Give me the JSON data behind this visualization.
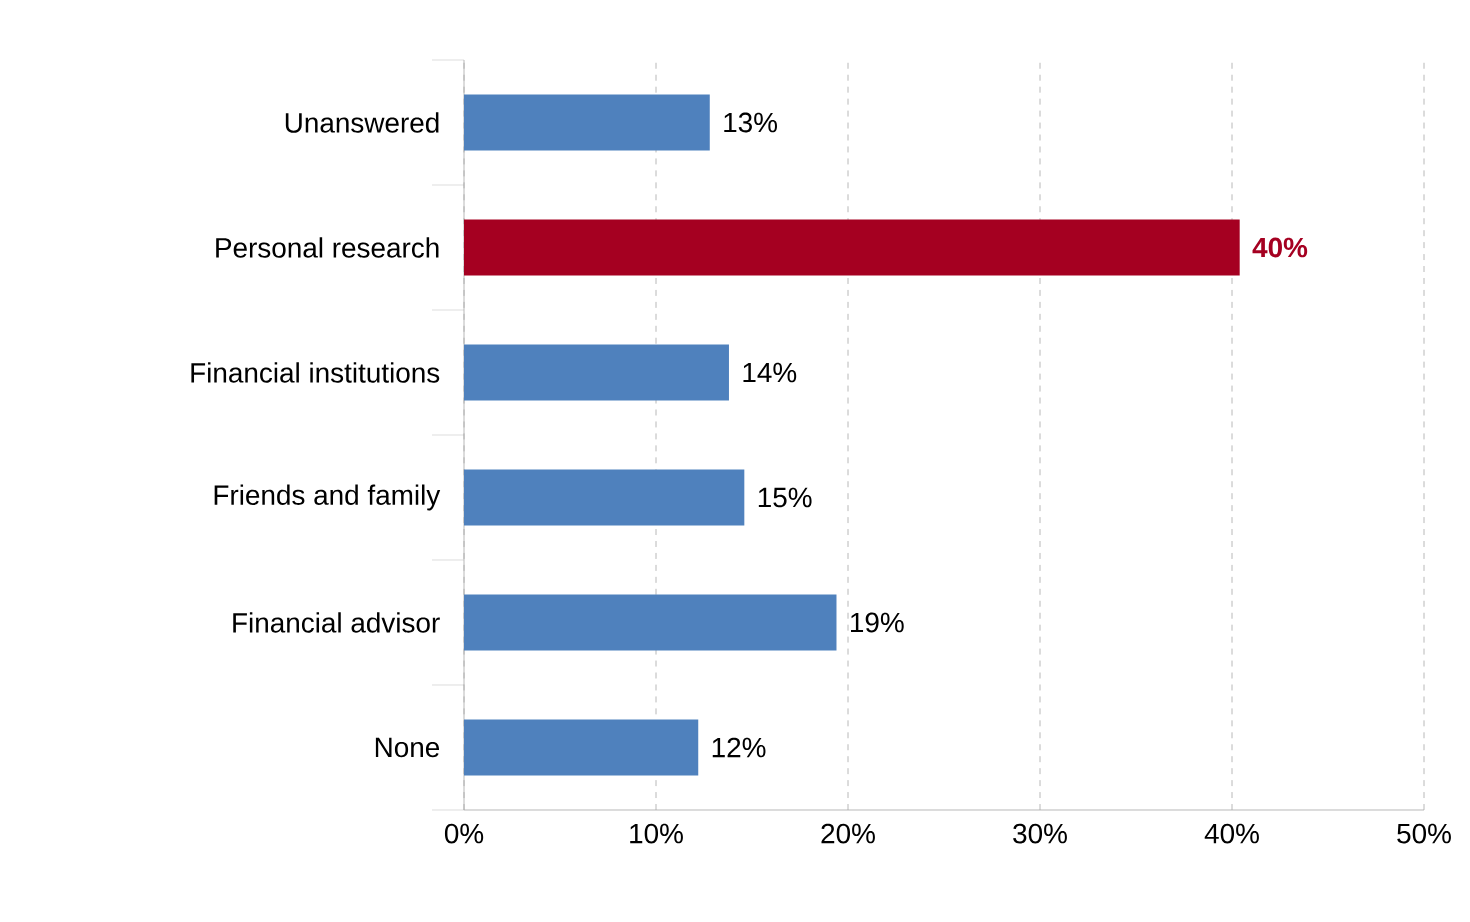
{
  "chart_data": {
    "type": "bar",
    "orientation": "horizontal",
    "categories": [
      "Unanswered",
      "Personal research",
      "Financial institutions",
      "Friends and family",
      "Financial advisor",
      "None"
    ],
    "values": [
      12.8,
      40.4,
      13.8,
      14.6,
      19.4,
      12.2
    ],
    "value_labels": [
      "13%",
      "40%",
      "14%",
      "15%",
      "19%",
      "12%"
    ],
    "color": "#4f81bd",
    "colors": [
      "#4f81bd",
      "#a50021",
      "#4f81bd",
      "#4f81bd",
      "#4f81bd",
      "#4f81bd"
    ],
    "xlim": [
      0,
      50
    ],
    "xticks": [
      {
        "value": 0,
        "label": "0%"
      },
      {
        "value": 10,
        "label": "10%"
      },
      {
        "value": 20,
        "label": "20%"
      },
      {
        "value": 30,
        "label": "30%"
      },
      {
        "value": 40,
        "label": "40%"
      },
      {
        "value": 50,
        "label": "50%"
      }
    ],
    "grid": "x"
  }
}
